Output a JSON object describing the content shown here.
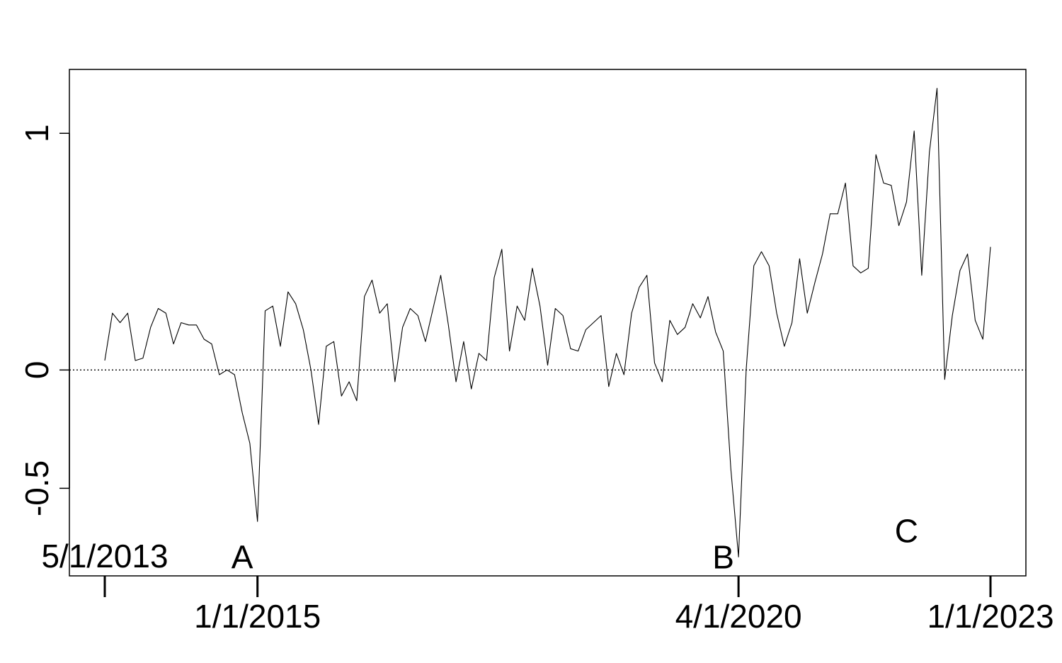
{
  "chart_data": {
    "type": "line",
    "title": "",
    "xlabel": "",
    "ylabel": "",
    "ylim": [
      -0.87,
      1.27
    ],
    "ytick_values": [
      -0.5,
      0,
      1
    ],
    "ytick_labels": [
      "-0.5",
      "0",
      "1"
    ],
    "x_date_ticks": [
      {
        "label": "5/1/2013",
        "index": 0,
        "row": "upper"
      },
      {
        "label": "1/1/2015",
        "index": 20,
        "row": "lower"
      },
      {
        "label": "4/1/2020",
        "index": 83,
        "row": "lower"
      },
      {
        "label": "1/1/2023",
        "index": 116,
        "row": "lower"
      }
    ],
    "reference_line": {
      "y": 0,
      "style": "dotted"
    },
    "annotations": [
      {
        "label": "A",
        "index": 18,
        "y": -0.79
      },
      {
        "label": "B",
        "index": 81,
        "y": -0.79
      },
      {
        "label": "C",
        "index": 105,
        "y": -0.68
      }
    ],
    "series": [
      {
        "name": "series",
        "values": [
          0.04,
          0.24,
          0.2,
          0.24,
          0.04,
          0.05,
          0.18,
          0.26,
          0.24,
          0.11,
          0.2,
          0.19,
          0.19,
          0.13,
          0.11,
          -0.02,
          0.0,
          -0.02,
          -0.18,
          -0.31,
          -0.64,
          0.25,
          0.27,
          0.1,
          0.33,
          0.28,
          0.17,
          0.0,
          -0.23,
          0.1,
          0.12,
          -0.11,
          -0.05,
          -0.13,
          0.31,
          0.38,
          0.24,
          0.28,
          -0.05,
          0.18,
          0.26,
          0.23,
          0.12,
          0.26,
          0.4,
          0.19,
          -0.05,
          0.12,
          -0.08,
          0.07,
          0.04,
          0.39,
          0.51,
          0.08,
          0.27,
          0.21,
          0.43,
          0.27,
          0.02,
          0.26,
          0.23,
          0.09,
          0.08,
          0.17,
          0.2,
          0.23,
          -0.07,
          0.07,
          -0.02,
          0.24,
          0.35,
          0.4,
          0.03,
          -0.05,
          0.21,
          0.15,
          0.18,
          0.28,
          0.22,
          0.31,
          0.16,
          0.08,
          -0.42,
          -0.79,
          0.0,
          0.44,
          0.5,
          0.44,
          0.24,
          0.1,
          0.2,
          0.47,
          0.24,
          0.37,
          0.49,
          0.66,
          0.66,
          0.79,
          0.44,
          0.41,
          0.43,
          0.91,
          0.79,
          0.78,
          0.61,
          0.71,
          1.01,
          0.4,
          0.92,
          1.19,
          -0.04,
          0.23,
          0.42,
          0.49,
          0.21,
          0.13,
          0.52
        ]
      }
    ]
  }
}
